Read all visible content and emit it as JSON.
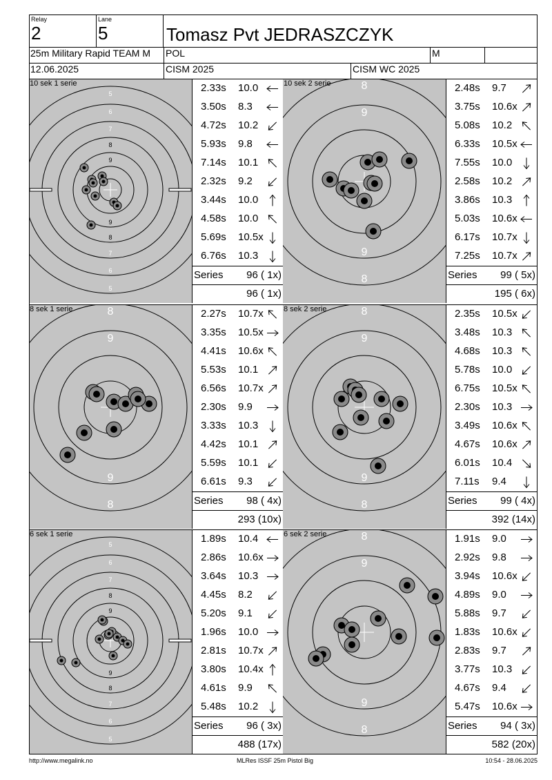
{
  "header": {
    "relay_label": "Relay",
    "relay_value": "2",
    "lane_label": "Lane",
    "lane_value": "5",
    "shooter_name": "Tomasz Pvt JEDRASZCZYK",
    "event": "25m Military Rapid TEAM M",
    "nation": "POL",
    "gender": "M",
    "date": "12.06.2025",
    "competition": "CISM 2025",
    "championship": "CISM WC 2025"
  },
  "panels": [
    {
      "title": "10 sek 1 serie",
      "target_type": "full",
      "shots": [
        {
          "time": "2.33s",
          "value": "10.0",
          "dir": "left"
        },
        {
          "time": "3.50s",
          "value": "8.3",
          "dir": "left"
        },
        {
          "time": "4.72s",
          "value": "10.2",
          "dir": "down-left"
        },
        {
          "time": "5.93s",
          "value": "9.8",
          "dir": "left"
        },
        {
          "time": "7.14s",
          "value": "10.1",
          "dir": "up-left"
        },
        {
          "time": "2.32s",
          "value": "9.2",
          "dir": "down-left"
        },
        {
          "time": "3.44s",
          "value": "10.0",
          "dir": "up"
        },
        {
          "time": "4.58s",
          "value": "10.0",
          "dir": "up-left"
        },
        {
          "time": "5.69s",
          "value": "10.5x",
          "dir": "down"
        },
        {
          "time": "6.76s",
          "value": "10.3",
          "dir": "down"
        }
      ],
      "series_label": "Series",
      "series_score": "96 ( 1x)",
      "total": "96 ( 1x)"
    },
    {
      "title": "10 sek 2 serie",
      "target_type": "zoom",
      "shots": [
        {
          "time": "2.48s",
          "value": "9.7",
          "dir": "up-right"
        },
        {
          "time": "3.75s",
          "value": "10.6x",
          "dir": "up-right"
        },
        {
          "time": "5.08s",
          "value": "10.2",
          "dir": "up-left"
        },
        {
          "time": "6.33s",
          "value": "10.5x",
          "dir": "left"
        },
        {
          "time": "7.55s",
          "value": "10.0",
          "dir": "down"
        },
        {
          "time": "2.58s",
          "value": "10.2",
          "dir": "up-right"
        },
        {
          "time": "3.86s",
          "value": "10.3",
          "dir": "up"
        },
        {
          "time": "5.03s",
          "value": "10.6x",
          "dir": "left"
        },
        {
          "time": "6.17s",
          "value": "10.7x",
          "dir": "down"
        },
        {
          "time": "7.25s",
          "value": "10.7x",
          "dir": "up-right"
        }
      ],
      "series_label": "Series",
      "series_score": "99 ( 5x)",
      "total": "195 ( 6x)"
    },
    {
      "title": "8 sek 1 serie",
      "target_type": "zoom",
      "shots": [
        {
          "time": "2.27s",
          "value": "10.7x",
          "dir": "up-left"
        },
        {
          "time": "3.35s",
          "value": "10.5x",
          "dir": "right"
        },
        {
          "time": "4.41s",
          "value": "10.6x",
          "dir": "up-left"
        },
        {
          "time": "5.53s",
          "value": "10.1",
          "dir": "up-right"
        },
        {
          "time": "6.56s",
          "value": "10.7x",
          "dir": "up-right"
        },
        {
          "time": "2.30s",
          "value": "9.9",
          "dir": "right"
        },
        {
          "time": "3.33s",
          "value": "10.3",
          "dir": "down"
        },
        {
          "time": "4.42s",
          "value": "10.1",
          "dir": "up-right"
        },
        {
          "time": "5.59s",
          "value": "10.1",
          "dir": "down-left"
        },
        {
          "time": "6.61s",
          "value": "9.3",
          "dir": "down-left"
        }
      ],
      "series_label": "Series",
      "series_score": "98 ( 4x)",
      "total": "293 (10x)"
    },
    {
      "title": "8 sek 2 serie",
      "target_type": "zoom",
      "shots": [
        {
          "time": "2.35s",
          "value": "10.5x",
          "dir": "down-left"
        },
        {
          "time": "3.48s",
          "value": "10.3",
          "dir": "up-left"
        },
        {
          "time": "4.68s",
          "value": "10.3",
          "dir": "up-left"
        },
        {
          "time": "5.78s",
          "value": "10.0",
          "dir": "down-left"
        },
        {
          "time": "6.75s",
          "value": "10.5x",
          "dir": "up-left"
        },
        {
          "time": "2.30s",
          "value": "10.3",
          "dir": "right"
        },
        {
          "time": "3.49s",
          "value": "10.6x",
          "dir": "up-left"
        },
        {
          "time": "4.67s",
          "value": "10.6x",
          "dir": "up-right"
        },
        {
          "time": "6.01s",
          "value": "10.4",
          "dir": "down-right"
        },
        {
          "time": "7.11s",
          "value": "9.4",
          "dir": "down"
        }
      ],
      "series_label": "Series",
      "series_score": "99 ( 4x)",
      "total": "392 (14x)"
    },
    {
      "title": "6 sek 1 serie",
      "target_type": "full",
      "shots": [
        {
          "time": "1.89s",
          "value": "10.4",
          "dir": "left"
        },
        {
          "time": "2.86s",
          "value": "10.6x",
          "dir": "right"
        },
        {
          "time": "3.64s",
          "value": "10.3",
          "dir": "right"
        },
        {
          "time": "4.45s",
          "value": "8.2",
          "dir": "down-left"
        },
        {
          "time": "5.20s",
          "value": "9.1",
          "dir": "down-left"
        },
        {
          "time": "1.96s",
          "value": "10.0",
          "dir": "right"
        },
        {
          "time": "2.81s",
          "value": "10.7x",
          "dir": "up-right"
        },
        {
          "time": "3.80s",
          "value": "10.4x",
          "dir": "up"
        },
        {
          "time": "4.61s",
          "value": "9.9",
          "dir": "up-left"
        },
        {
          "time": "5.48s",
          "value": "10.2",
          "dir": "down"
        }
      ],
      "series_label": "Series",
      "series_score": "96 ( 3x)",
      "total": "488 (17x)"
    },
    {
      "title": "6 sek 2 serie",
      "target_type": "zoom",
      "shots": [
        {
          "time": "1.91s",
          "value": "9.0",
          "dir": "right"
        },
        {
          "time": "2.92s",
          "value": "9.8",
          "dir": "right"
        },
        {
          "time": "3.94s",
          "value": "10.6x",
          "dir": "down-left"
        },
        {
          "time": "4.89s",
          "value": "9.0",
          "dir": "right"
        },
        {
          "time": "5.88s",
          "value": "9.7",
          "dir": "down-left"
        },
        {
          "time": "1.83s",
          "value": "10.6x",
          "dir": "down-left"
        },
        {
          "time": "2.83s",
          "value": "9.7",
          "dir": "up-right"
        },
        {
          "time": "3.77s",
          "value": "10.3",
          "dir": "down-left"
        },
        {
          "time": "4.67s",
          "value": "9.4",
          "dir": "down-left"
        },
        {
          "time": "5.47s",
          "value": "10.6x",
          "dir": "right"
        }
      ],
      "series_label": "Series",
      "series_score": "94 ( 3x)",
      "total": "582 (20x)"
    }
  ],
  "footer": {
    "url": "http://www.megalink.no",
    "software": "MLRes ISSF 25m Pistol Big",
    "timestamp": "10:54 - 28.06.2025"
  },
  "colors": {
    "target_grey": "#c4c4c4",
    "ring": "#000000",
    "ring_label_full": "#ffffff",
    "shot_outer": "#8a8a8a",
    "shot_inner": "#000000"
  }
}
